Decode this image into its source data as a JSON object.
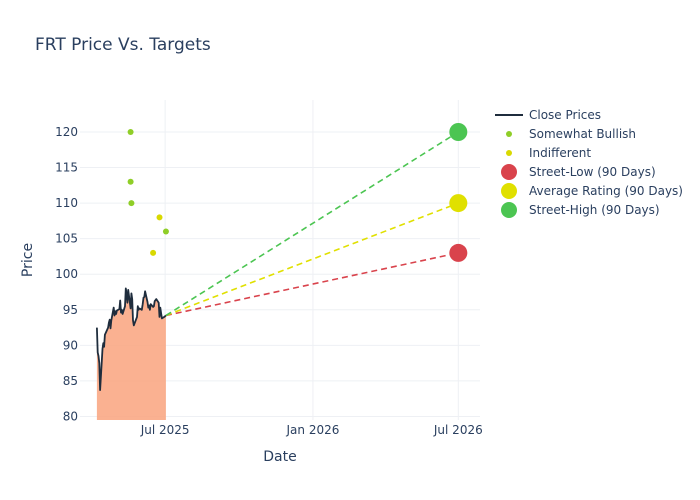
{
  "chart_data": {
    "type": "line",
    "title": "FRT Price Vs. Targets",
    "xlabel": "Date",
    "ylabel": "Price",
    "xlim": [
      "2025-03-17",
      "2026-07-28"
    ],
    "ylim": [
      79.5,
      124.5
    ],
    "x_ticks": [
      {
        "date": "2025-07-01",
        "label": "Jul 2025"
      },
      {
        "date": "2026-01-01",
        "label": "Jan 2026"
      },
      {
        "date": "2026-07-01",
        "label": "Jul 2026"
      }
    ],
    "y_ticks": [
      80,
      85,
      90,
      95,
      100,
      105,
      110,
      115,
      120
    ],
    "grid": true,
    "legend_position": "right",
    "colors": {
      "close": "#1f2d3d",
      "fill": "#f9a37e",
      "somewhat_bullish": "#8fce27",
      "indifferent": "#d9d900",
      "street_low": "#d9434c",
      "average": "#e0e000",
      "street_high": "#4cc552"
    },
    "series": [
      {
        "name": "Close Prices",
        "type": "line",
        "x": [
          "2025-04-07",
          "2025-04-08",
          "2025-04-09",
          "2025-04-10",
          "2025-04-11",
          "2025-04-14",
          "2025-04-15",
          "2025-04-16",
          "2025-04-17",
          "2025-04-21",
          "2025-04-22",
          "2025-04-23",
          "2025-04-24",
          "2025-04-25",
          "2025-04-28",
          "2025-04-29",
          "2025-04-30",
          "2025-05-01",
          "2025-05-02",
          "2025-05-05",
          "2025-05-06",
          "2025-05-07",
          "2025-05-08",
          "2025-05-09",
          "2025-05-12",
          "2025-05-13",
          "2025-05-14",
          "2025-05-15",
          "2025-05-16",
          "2025-05-19",
          "2025-05-20",
          "2025-05-21",
          "2025-05-22",
          "2025-05-23",
          "2025-05-27",
          "2025-05-28",
          "2025-05-29",
          "2025-05-30",
          "2025-06-02",
          "2025-06-03",
          "2025-06-04",
          "2025-06-05",
          "2025-06-06",
          "2025-06-09",
          "2025-06-10",
          "2025-06-11",
          "2025-06-12",
          "2025-06-13",
          "2025-06-16",
          "2025-06-17",
          "2025-06-18",
          "2025-06-20",
          "2025-06-23",
          "2025-06-24",
          "2025-06-25",
          "2025-06-26",
          "2025-06-27",
          "2025-06-30",
          "2025-07-01",
          "2025-07-02"
        ],
        "values": [
          92.5,
          89.0,
          88.5,
          87.5,
          83.7,
          89.5,
          90.3,
          89.8,
          91.5,
          92.5,
          93.2,
          93.6,
          92.4,
          93.5,
          95.3,
          94.2,
          94.8,
          94.4,
          94.9,
          95.1,
          96.3,
          94.6,
          95.0,
          94.4,
          95.5,
          98.0,
          97.3,
          96.0,
          97.8,
          95.2,
          97.3,
          96.5,
          93.5,
          92.8,
          94.0,
          95.5,
          95.0,
          95.2,
          95.0,
          95.8,
          96.7,
          96.8,
          97.6,
          96.1,
          95.3,
          95.6,
          95.0,
          95.8,
          95.4,
          95.5,
          96.2,
          96.5,
          96.0,
          94.0,
          95.3,
          94.5,
          93.8,
          94.0,
          94.1,
          94.2
        ]
      },
      {
        "name": "Somewhat Bullish",
        "type": "scatter",
        "points": [
          {
            "x": "2025-05-19",
            "y": 120
          },
          {
            "x": "2025-05-19",
            "y": 113
          },
          {
            "x": "2025-05-20",
            "y": 110
          },
          {
            "x": "2025-07-02",
            "y": 106
          }
        ]
      },
      {
        "name": "Indifferent",
        "type": "scatter",
        "points": [
          {
            "x": "2025-06-16",
            "y": 103
          },
          {
            "x": "2025-06-24",
            "y": 108
          }
        ]
      },
      {
        "name": "Street-Low (90 Days)",
        "type": "target",
        "start": {
          "x": "2025-07-02",
          "y": 94.2
        },
        "end": {
          "x": "2026-07-01",
          "y": 103
        }
      },
      {
        "name": "Average Rating (90 Days)",
        "type": "target",
        "start": {
          "x": "2025-07-02",
          "y": 94.2
        },
        "end": {
          "x": "2026-07-01",
          "y": 110
        }
      },
      {
        "name": "Street-High (90 Days)",
        "type": "target",
        "start": {
          "x": "2025-07-02",
          "y": 94.2
        },
        "end": {
          "x": "2026-07-01",
          "y": 120
        }
      }
    ]
  }
}
